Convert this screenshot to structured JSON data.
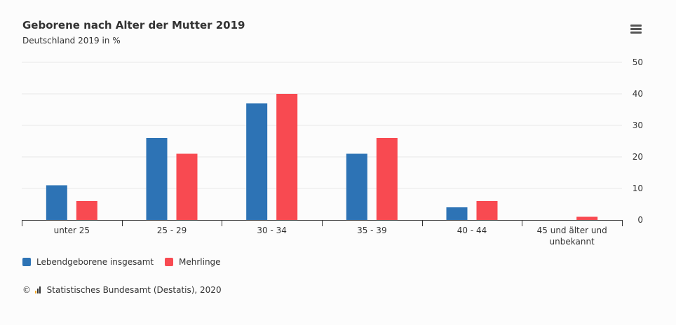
{
  "chart_data": {
    "type": "bar",
    "title": "Geborene nach Alter der Mutter 2019",
    "subtitle": "Deutschland 2019 in %",
    "categories": [
      "unter 25",
      "25 - 29",
      "30 - 34",
      "35 - 39",
      "40 - 44",
      "45 und älter und unbekannt"
    ],
    "series": [
      {
        "name": "Lebendgeborene insgesamt",
        "color": "#2d73b5",
        "values": [
          11,
          26,
          37,
          21,
          4,
          0
        ]
      },
      {
        "name": "Mehrlinge",
        "color": "#f84a51",
        "values": [
          6,
          21,
          40,
          26,
          6,
          1
        ]
      }
    ],
    "ylim": [
      0,
      50
    ],
    "yticks": [
      0,
      10,
      20,
      30,
      40,
      50
    ],
    "y_axis_position": "right",
    "grid": true,
    "legend_position": "bottom-left"
  },
  "credits": {
    "copyright": "©",
    "text": "Statistisches Bundesamt (Destatis), 2020"
  },
  "menu_icon": "hamburger-menu-icon"
}
